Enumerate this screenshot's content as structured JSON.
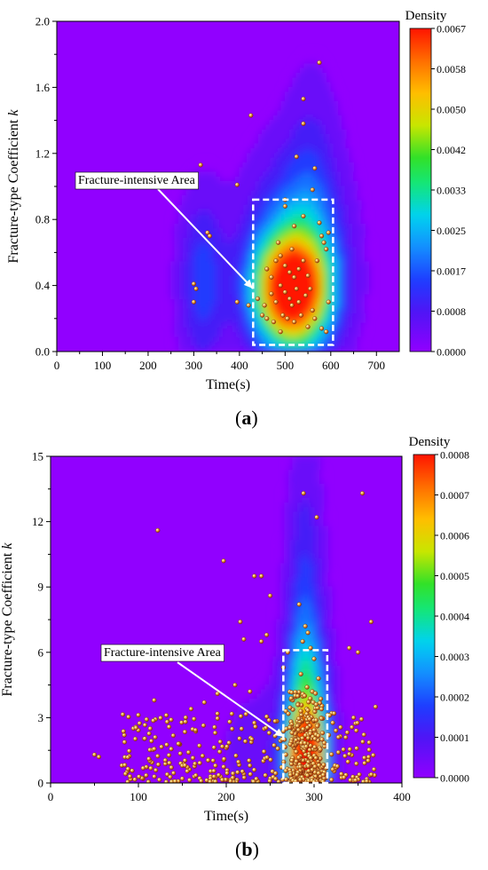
{
  "chart_data": [
    {
      "type": "scatter",
      "panel_label": "a",
      "title": "",
      "xlabel": "Time(s)",
      "ylabel": "Fracture-type Coefficient ",
      "ylabel_italic": "k",
      "xlim": [
        0,
        750
      ],
      "ylim": [
        0,
        2.0
      ],
      "xticks": [
        "0",
        "100",
        "200",
        "300",
        "400",
        "500",
        "600",
        "700"
      ],
      "yticks": [
        "0.0",
        "0.4",
        "0.8",
        "1.2",
        "1.6",
        "2.0"
      ],
      "colorbar": {
        "title": "Density",
        "ticks": [
          "0.0000",
          "0.0008",
          "0.0017",
          "0.0025",
          "0.0033",
          "0.0042",
          "0.0050",
          "0.0058",
          "0.0067"
        ]
      },
      "annotation": {
        "text": "Fracture-intensive Area",
        "box_x": [
          430,
          605
        ],
        "box_y": [
          0.04,
          0.92
        ]
      },
      "density_blobs": [
        {
          "x": 515,
          "y": 0.36,
          "sx": 55,
          "sy": 0.22,
          "a": 1.0
        },
        {
          "x": 520,
          "y": 0.55,
          "sx": 70,
          "sy": 0.4,
          "a": 0.35
        },
        {
          "x": 320,
          "y": 0.42,
          "sx": 35,
          "sy": 0.35,
          "a": 0.22
        },
        {
          "x": 560,
          "y": 0.95,
          "sx": 40,
          "sy": 0.5,
          "a": 0.12
        }
      ],
      "points": [
        [
          315,
          1.13
        ],
        [
          395,
          1.01
        ],
        [
          425,
          1.43
        ],
        [
          575,
          1.75
        ],
        [
          540,
          1.53
        ],
        [
          540,
          1.38
        ],
        [
          525,
          1.18
        ],
        [
          565,
          1.11
        ],
        [
          560,
          0.98
        ],
        [
          500,
          0.92
        ],
        [
          330,
          0.72
        ],
        [
          335,
          0.7
        ],
        [
          300,
          0.41
        ],
        [
          305,
          0.38
        ],
        [
          300,
          0.3
        ],
        [
          395,
          0.3
        ],
        [
          420,
          0.28
        ],
        [
          460,
          0.5
        ],
        [
          470,
          0.45
        ],
        [
          480,
          0.55
        ],
        [
          490,
          0.58
        ],
        [
          500,
          0.52
        ],
        [
          510,
          0.48
        ],
        [
          520,
          0.45
        ],
        [
          530,
          0.5
        ],
        [
          540,
          0.55
        ],
        [
          550,
          0.46
        ],
        [
          470,
          0.35
        ],
        [
          480,
          0.3
        ],
        [
          490,
          0.4
        ],
        [
          500,
          0.36
        ],
        [
          510,
          0.32
        ],
        [
          515,
          0.28
        ],
        [
          525,
          0.38
        ],
        [
          530,
          0.3
        ],
        [
          545,
          0.34
        ],
        [
          555,
          0.38
        ],
        [
          560,
          0.25
        ],
        [
          450,
          0.22
        ],
        [
          460,
          0.2
        ],
        [
          475,
          0.18
        ],
        [
          495,
          0.22
        ],
        [
          505,
          0.2
        ],
        [
          520,
          0.18
        ],
        [
          535,
          0.22
        ],
        [
          550,
          0.15
        ],
        [
          565,
          0.2
        ],
        [
          580,
          0.7
        ],
        [
          585,
          0.66
        ],
        [
          590,
          0.62
        ],
        [
          575,
          0.78
        ],
        [
          540,
          0.82
        ],
        [
          520,
          0.76
        ],
        [
          595,
          0.3
        ],
        [
          590,
          0.12
        ],
        [
          580,
          0.14
        ],
        [
          500,
          0.88
        ],
        [
          455,
          0.28
        ],
        [
          490,
          0.12
        ],
        [
          570,
          0.55
        ],
        [
          515,
          0.62
        ],
        [
          485,
          0.66
        ],
        [
          595,
          0.72
        ],
        [
          440,
          0.32
        ]
      ]
    },
    {
      "type": "scatter",
      "panel_label": "b",
      "title": "",
      "xlabel": "Time(s)",
      "ylabel": "Fracture-type Coefficient ",
      "ylabel_italic": "k",
      "xlim": [
        0,
        400
      ],
      "ylim": [
        0,
        15
      ],
      "xticks": [
        "0",
        "100",
        "200",
        "300",
        "400"
      ],
      "yticks": [
        "0",
        "3",
        "6",
        "9",
        "12",
        "15"
      ],
      "colorbar": {
        "title": "Density",
        "ticks": [
          "0.0000",
          "0.0001",
          "0.0002",
          "0.0003",
          "0.0004",
          "0.0005",
          "0.0006",
          "0.0007",
          "0.0008"
        ]
      },
      "annotation": {
        "text": "Fracture-intensive Area",
        "box_x": [
          265,
          315
        ],
        "box_y": [
          0.0,
          6.1
        ]
      },
      "density_blobs": [
        {
          "x": 292,
          "y": 1.0,
          "sx": 14,
          "sy": 1.3,
          "a": 1.0
        },
        {
          "x": 292,
          "y": 3.0,
          "sx": 16,
          "sy": 2.5,
          "a": 0.45
        },
        {
          "x": 290,
          "y": 7.0,
          "sx": 14,
          "sy": 5.0,
          "a": 0.22
        },
        {
          "x": 250,
          "y": 1.5,
          "sx": 40,
          "sy": 2.0,
          "a": 0.08
        }
      ],
      "points": [
        [
          288,
          13.3
        ],
        [
          303,
          12.2
        ],
        [
          122,
          11.6
        ],
        [
          197,
          10.2
        ],
        [
          355,
          13.3
        ],
        [
          365,
          7.4
        ],
        [
          240,
          9.5
        ],
        [
          232,
          9.5
        ],
        [
          250,
          8.6
        ],
        [
          265,
          5.3
        ],
        [
          283,
          8.2
        ],
        [
          270,
          6.0
        ],
        [
          216,
          7.4
        ],
        [
          220,
          6.6
        ],
        [
          246,
          6.8
        ],
        [
          240,
          6.5
        ],
        [
          290,
          7.2
        ],
        [
          293,
          6.9
        ],
        [
          287,
          6.5
        ],
        [
          296,
          6.2
        ],
        [
          300,
          5.7
        ],
        [
          285,
          5.0
        ],
        [
          292,
          4.4
        ],
        [
          305,
          4.8
        ],
        [
          282,
          4.0
        ],
        [
          298,
          4.2
        ],
        [
          340,
          6.2
        ],
        [
          350,
          6.0
        ],
        [
          227,
          4.2
        ],
        [
          190,
          4.1
        ],
        [
          210,
          4.5
        ],
        [
          175,
          3.7
        ],
        [
          160,
          3.4
        ],
        [
          118,
          3.8
        ],
        [
          268,
          3.3
        ],
        [
          320,
          3.2
        ],
        [
          345,
          3.0
        ],
        [
          370,
          3.5
        ],
        [
          50,
          1.3
        ],
        [
          55,
          1.2
        ]
      ],
      "random_cluster": {
        "seed": 7,
        "count": 330,
        "x": [
          80,
          370
        ],
        "y": [
          0.05,
          3.2
        ],
        "core_count": 260,
        "core_x": [
          272,
          312
        ],
        "core_y": [
          0.05,
          4.2
        ]
      }
    }
  ]
}
